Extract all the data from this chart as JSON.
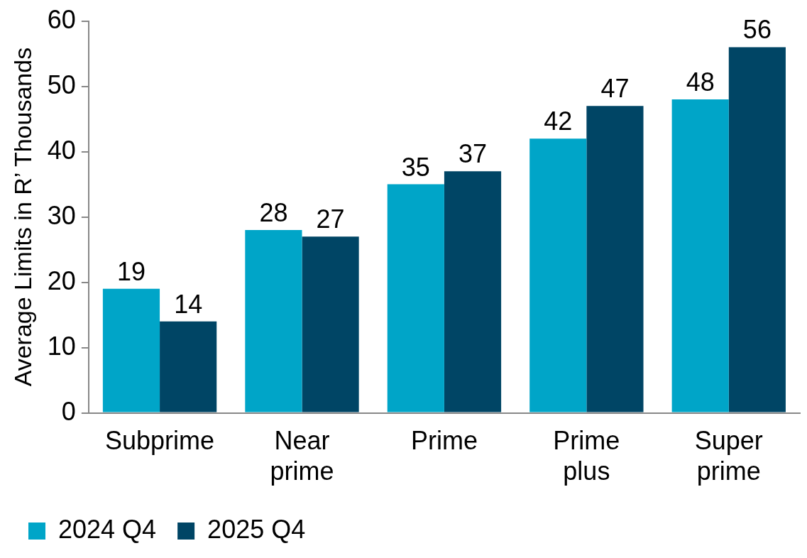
{
  "chart_data": {
    "type": "bar",
    "ylabel": "Average Limits in R’ Thousands",
    "categories": [
      "Subprime",
      "Near prime",
      "Prime",
      "Prime plus",
      "Super prime"
    ],
    "series": [
      {
        "name": "2024 Q4",
        "color": "#00a5c8",
        "values": [
          19,
          28,
          35,
          42,
          48
        ]
      },
      {
        "name": "2025 Q4",
        "color": "#004565",
        "values": [
          14,
          27,
          37,
          47,
          56
        ]
      }
    ],
    "ylim": [
      0,
      60
    ],
    "yticks": [
      0,
      10,
      20,
      30,
      40,
      50,
      60
    ],
    "grid": false,
    "legend": "bottom left",
    "data_labels": true
  }
}
